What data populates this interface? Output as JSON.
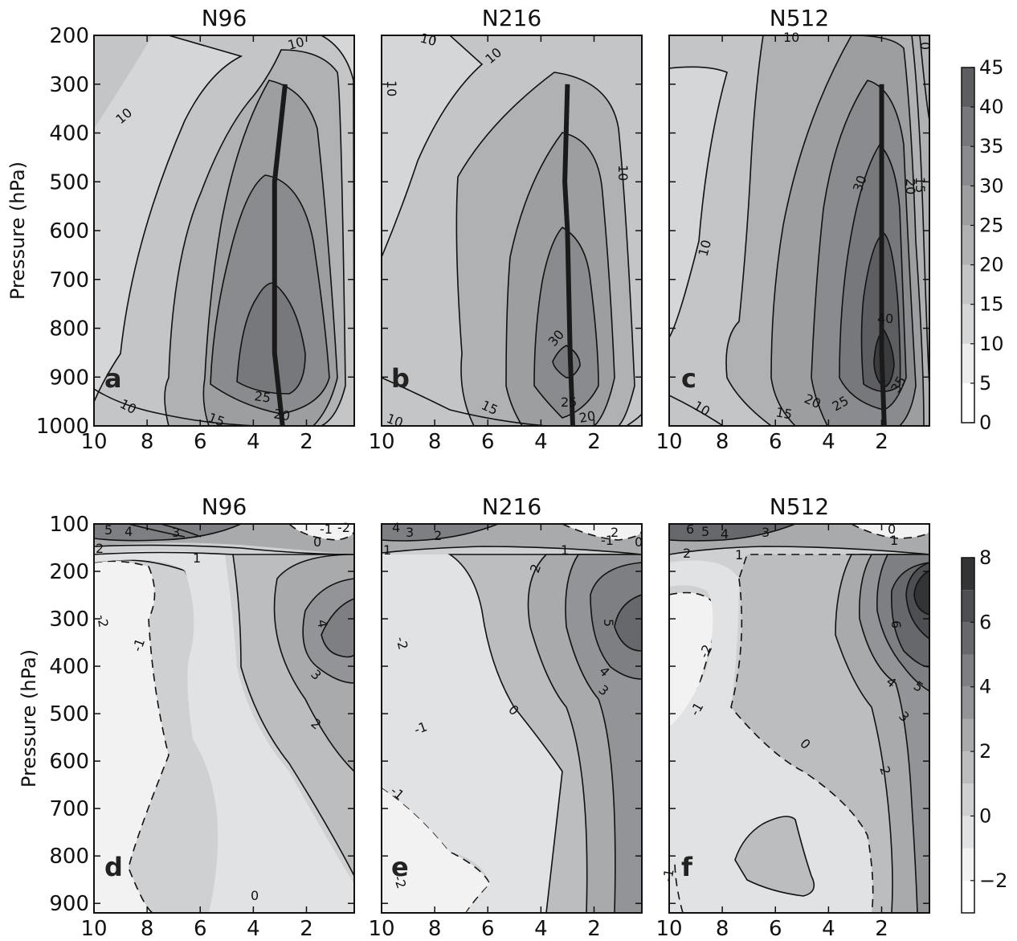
{
  "chart_data": [
    {
      "type": "contour",
      "panel": "a",
      "title": "N96",
      "ylabel": "Pressure (hPa)",
      "yticks": [
        200,
        300,
        400,
        500,
        600,
        700,
        800,
        900,
        1000
      ],
      "ylim": [
        1000,
        200
      ],
      "xticks": [
        10,
        8,
        6,
        4,
        2
      ],
      "xlim": [
        10,
        0.2
      ],
      "contour_labels": [
        "10",
        "10",
        "10",
        "15",
        "20",
        "25"
      ],
      "core_line": [
        [
          2.8,
          300
        ],
        [
          3.2,
          500
        ],
        [
          3.2,
          850
        ],
        [
          2.9,
          1000
        ]
      ]
    },
    {
      "type": "contour",
      "panel": "b",
      "title": "N216",
      "yticks": [
        200,
        300,
        400,
        500,
        600,
        700,
        800,
        900,
        1000
      ],
      "ylim": [
        1000,
        200
      ],
      "xticks": [
        10,
        8,
        6,
        4,
        2
      ],
      "xlim": [
        10,
        0.2
      ],
      "contour_labels": [
        "10",
        "10",
        "10",
        "10",
        "10",
        "15",
        "25",
        "30",
        "20"
      ],
      "core_line": [
        [
          3.0,
          300
        ],
        [
          3.1,
          500
        ],
        [
          3.0,
          600
        ],
        [
          2.9,
          850
        ],
        [
          2.8,
          1000
        ]
      ]
    },
    {
      "type": "contour",
      "panel": "c",
      "title": "N512",
      "yticks": [
        200,
        300,
        400,
        500,
        600,
        700,
        800,
        900,
        1000
      ],
      "ylim": [
        1000,
        200
      ],
      "xticks": [
        10,
        8,
        6,
        4,
        2
      ],
      "xlim": [
        10,
        0.2
      ],
      "contour_labels": [
        "10",
        "0",
        "10",
        "30",
        "20",
        "15",
        "40",
        "10",
        "15",
        "20",
        "25",
        "35"
      ],
      "core_line": [
        [
          2.0,
          300
        ],
        [
          2.0,
          850
        ],
        [
          1.9,
          1000
        ]
      ]
    },
    {
      "type": "contour",
      "panel": "d",
      "title": "N96",
      "ylabel": "Pressure (hPa)",
      "yticks": [
        100,
        200,
        300,
        400,
        500,
        600,
        700,
        800,
        900
      ],
      "ylim": [
        920,
        100
      ],
      "xticks": [
        10,
        8,
        6,
        4,
        2
      ],
      "xlim": [
        10,
        0.2
      ],
      "contour_labels": [
        "5",
        "4",
        "3",
        "-1",
        "-2",
        "0",
        "2",
        "1",
        "-2",
        "-1",
        "4",
        "3",
        "2",
        "0"
      ]
    },
    {
      "type": "contour",
      "panel": "e",
      "title": "N216",
      "yticks": [
        100,
        200,
        300,
        400,
        500,
        600,
        700,
        800,
        900
      ],
      "ylim": [
        920,
        100
      ],
      "xticks": [
        10,
        8,
        6,
        4,
        2
      ],
      "xlim": [
        10,
        0.2
      ],
      "contour_labels": [
        "4",
        "3",
        "2",
        "-1",
        "2",
        "0",
        "1",
        "1",
        "2",
        "-2",
        "5",
        "4",
        "3",
        "0",
        "-1",
        "-1",
        "-2"
      ]
    },
    {
      "type": "contour",
      "panel": "f",
      "title": "N512",
      "yticks": [
        100,
        200,
        300,
        400,
        500,
        600,
        700,
        800,
        900
      ],
      "ylim": [
        920,
        100
      ],
      "xticks": [
        10,
        8,
        6,
        4,
        2
      ],
      "xlim": [
        10,
        0.2
      ],
      "contour_labels": [
        "6",
        "5",
        "4",
        "3",
        "0",
        "1",
        "2",
        "1",
        "-2",
        "6",
        "4",
        "5",
        "-1",
        "3",
        "0",
        "2",
        "-1"
      ]
    }
  ],
  "colorbars": [
    {
      "ticks": [
        "45",
        "40",
        "35",
        "30",
        "25",
        "20",
        "15",
        "10",
        "5",
        "0"
      ],
      "levels": [
        0,
        5,
        10,
        15,
        20,
        25,
        30,
        35,
        40,
        45
      ]
    },
    {
      "ticks": [
        "8",
        "6",
        "4",
        "2",
        "0",
        "−2"
      ],
      "levels": [
        -3,
        -2,
        -1,
        0,
        1,
        2,
        3,
        4,
        5,
        6,
        7,
        8
      ]
    }
  ],
  "colors": {
    "levels_top": [
      "#ffffff",
      "#ececed",
      "#d5d6d8",
      "#c4c5c7",
      "#b0b1b3",
      "#9c9ea0",
      "#8a8b8e",
      "#77787b",
      "#5d5e61",
      "#3b3c3e"
    ],
    "levels_bottom": [
      "#ffffff",
      "#f2f2f2",
      "#e1e2e3",
      "#cfd0d2",
      "#bcbdbf",
      "#a9aaac",
      "#939497",
      "#7e7f82",
      "#67686b",
      "#4d4e51",
      "#333436"
    ],
    "core_line": "#1a1a1a"
  }
}
